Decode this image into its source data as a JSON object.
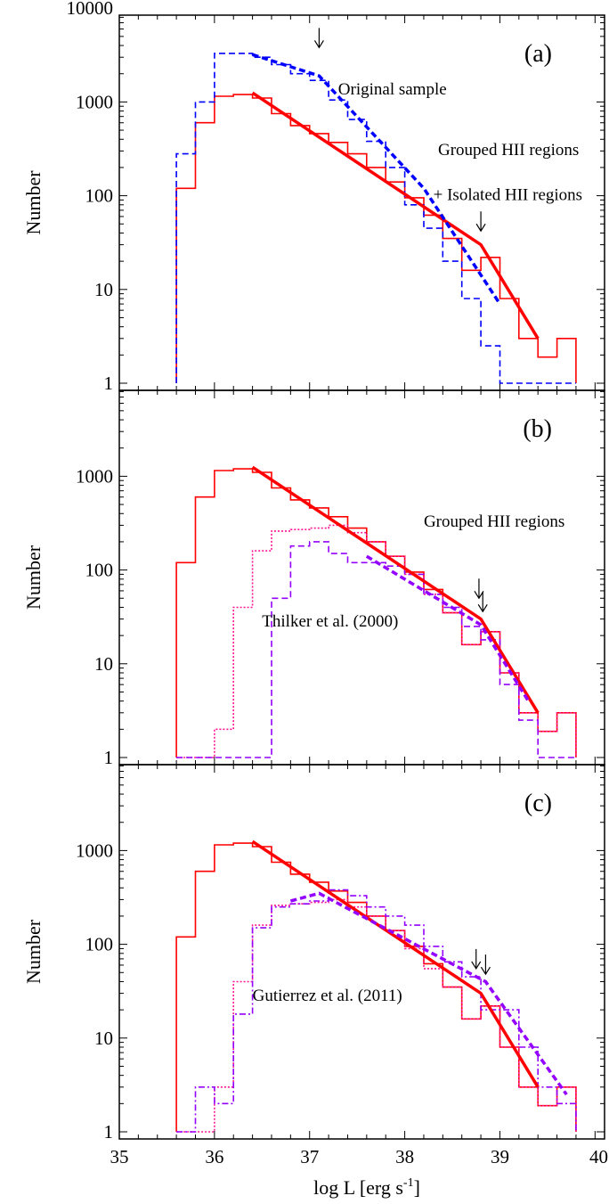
{
  "figure": {
    "xlabel": "log L [erg s",
    "xlabel_sup": "-1",
    "xlabel_end": "]"
  },
  "colors": {
    "red": "#ff0000",
    "blue": "#0000ff",
    "magenta": "#ff1493",
    "purple": "#9400ff",
    "black": "#000000"
  },
  "chart_data": [
    {
      "type": "line",
      "panel": "(a)",
      "ylabel": "Number",
      "ylog": true,
      "xlim": [
        35,
        40.1
      ],
      "ylim": [
        1,
        10000
      ],
      "x_ticks": [
        "35",
        "36",
        "37",
        "38",
        "39",
        "40"
      ],
      "y_ticks": [
        "1",
        "10",
        "100",
        "1000",
        "10000"
      ],
      "y_tick_values": [
        1,
        10,
        100,
        1000,
        10000
      ],
      "bin_edges": [
        35.6,
        35.8,
        36.0,
        36.2,
        36.4,
        36.6,
        36.8,
        37.0,
        37.2,
        37.4,
        37.6,
        37.8,
        38.0,
        38.2,
        38.4,
        38.6,
        38.8,
        39.0,
        39.2,
        39.4,
        39.6,
        39.8
      ],
      "series": [
        {
          "name": "Grouped HII regions + Isolated HII regions",
          "style": "hist",
          "dash": "solid",
          "color": "#ff0000",
          "values": [
            120,
            600,
            1150,
            1200,
            1100,
            750,
            560,
            460,
            370,
            280,
            200,
            140,
            95,
            62,
            35,
            16,
            22,
            8,
            3,
            1.9,
            3
          ]
        },
        {
          "name": "Original sample",
          "style": "hist",
          "dash": "dash",
          "color": "#0000ff",
          "values": [
            280,
            1000,
            3300,
            3300,
            3000,
            2500,
            2000,
            1700,
            1050,
            650,
            380,
            200,
            80,
            45,
            20,
            8,
            2.5,
            1,
            1,
            1,
            1
          ]
        },
        {
          "name": "",
          "style": "fit",
          "dash": "solid",
          "color": "#ff0000",
          "x": [
            36.4,
            38.8,
            39.4
          ],
          "y": [
            1250,
            30,
            3
          ]
        },
        {
          "name": "",
          "style": "fit",
          "dash": "dash",
          "color": "#0000ff",
          "x": [
            36.4,
            37.1,
            38.2,
            39.0
          ],
          "y": [
            3200,
            1900,
            120,
            7
          ]
        }
      ],
      "annotations": [
        {
          "text": "Original sample",
          "x": 37.3,
          "y": 1200
        },
        {
          "text": "Grouped HII regions",
          "x": 38.35,
          "y": 270
        },
        {
          "text": "+ Isolated HII regions",
          "x": 38.3,
          "y": 90
        }
      ],
      "arrows": [
        {
          "x": 37.1,
          "y": 3800
        },
        {
          "x": 38.8,
          "y": 42
        }
      ]
    },
    {
      "type": "line",
      "panel": "(b)",
      "ylabel": "Number",
      "ylog": true,
      "xlim": [
        35,
        40.1
      ],
      "ylim": [
        1,
        10000
      ],
      "x_ticks": [
        "35",
        "36",
        "37",
        "38",
        "39",
        "40"
      ],
      "y_ticks": [
        "1",
        "10",
        "100",
        "1000"
      ],
      "y_tick_values": [
        1,
        10,
        100,
        1000
      ],
      "bin_edges": [
        35.6,
        35.8,
        36.0,
        36.2,
        36.4,
        36.6,
        36.8,
        37.0,
        37.2,
        37.4,
        37.6,
        37.8,
        38.0,
        38.2,
        38.4,
        38.6,
        38.8,
        39.0,
        39.2,
        39.4,
        39.6,
        39.8
      ],
      "series": [
        {
          "name": "Grouped HII regions",
          "style": "hist",
          "dash": "solid",
          "color": "#ff0000",
          "values": [
            120,
            600,
            1150,
            1200,
            1100,
            750,
            560,
            460,
            370,
            280,
            200,
            140,
            95,
            62,
            35,
            16,
            22,
            8,
            3,
            1.9,
            3
          ]
        },
        {
          "name": "",
          "style": "hist",
          "dash": "dot",
          "color": "#ff1493",
          "values": [
            1,
            1,
            2,
            40,
            160,
            260,
            270,
            280,
            300,
            250,
            200,
            140,
            90,
            55,
            35,
            16,
            22,
            8,
            3,
            1.9,
            3
          ]
        },
        {
          "name": "Thilker et al. (2000)",
          "style": "hist",
          "dash": "dash",
          "color": "#9400ff",
          "values": [
            1,
            1,
            1,
            1,
            1,
            50,
            180,
            200,
            150,
            120,
            120,
            110,
            90,
            55,
            40,
            25,
            18,
            6,
            2.5,
            1,
            1
          ]
        },
        {
          "name": "",
          "style": "fit",
          "dash": "solid",
          "color": "#ff0000",
          "x": [
            36.4,
            38.8,
            39.4
          ],
          "y": [
            1250,
            30,
            3
          ]
        },
        {
          "name": "",
          "style": "fit",
          "dash": "dash",
          "color": "#9400ff",
          "x": [
            37.6,
            38.8,
            39.3
          ],
          "y": [
            140,
            26,
            4
          ]
        }
      ],
      "annotations": [
        {
          "text": "Grouped HII regions",
          "x": 38.2,
          "y": 290
        },
        {
          "text": "Thilker et al. (2000)",
          "x": 36.5,
          "y": 25
        }
      ],
      "arrows": [
        {
          "x": 38.78,
          "y": 50
        },
        {
          "x": 38.82,
          "y": 36
        }
      ]
    },
    {
      "type": "line",
      "panel": "(c)",
      "ylabel": "Number",
      "ylog": true,
      "xlim": [
        35,
        40.1
      ],
      "ylim": [
        1,
        10000
      ],
      "x_ticks": [
        "35",
        "36",
        "37",
        "38",
        "39",
        "40"
      ],
      "y_ticks": [
        "1",
        "10",
        "100",
        "1000"
      ],
      "y_tick_values": [
        1,
        10,
        100,
        1000
      ],
      "bin_edges": [
        35.6,
        35.8,
        36.0,
        36.2,
        36.4,
        36.6,
        36.8,
        37.0,
        37.2,
        37.4,
        37.6,
        37.8,
        38.0,
        38.2,
        38.4,
        38.6,
        38.8,
        39.0,
        39.2,
        39.4,
        39.6,
        39.8
      ],
      "series": [
        {
          "name": "",
          "style": "hist",
          "dash": "solid",
          "color": "#ff0000",
          "values": [
            120,
            600,
            1150,
            1200,
            1100,
            750,
            560,
            460,
            370,
            280,
            200,
            140,
            95,
            62,
            35,
            16,
            22,
            8,
            3,
            1.9,
            3
          ]
        },
        {
          "name": "",
          "style": "hist",
          "dash": "dot",
          "color": "#ff1493",
          "values": [
            1,
            1,
            3,
            40,
            160,
            260,
            270,
            280,
            300,
            250,
            200,
            140,
            90,
            55,
            35,
            16,
            22,
            8,
            3,
            1.9,
            3
          ]
        },
        {
          "name": "Gutierrez et al. (2011)",
          "style": "hist",
          "dash": "dashdot",
          "color": "#9400ff",
          "values": [
            1,
            3,
            2,
            18,
            150,
            250,
            270,
            290,
            380,
            330,
            250,
            200,
            160,
            95,
            65,
            45,
            20,
            20,
            8,
            3,
            2
          ]
        },
        {
          "name": "",
          "style": "fit",
          "dash": "solid",
          "color": "#ff0000",
          "x": [
            36.4,
            38.8,
            39.4
          ],
          "y": [
            1250,
            30,
            3
          ]
        },
        {
          "name": "",
          "style": "fit",
          "dash": "dash",
          "color": "#9400ff",
          "x": [
            36.8,
            37.1,
            38.85,
            39.7
          ],
          "y": [
            290,
            350,
            40,
            2.5
          ]
        }
      ],
      "annotations": [
        {
          "text": "Gutierrez et al. (2011)",
          "x": 36.4,
          "y": 25
        }
      ],
      "arrows": [
        {
          "x": 38.75,
          "y": 55
        },
        {
          "x": 38.85,
          "y": 48
        }
      ]
    }
  ]
}
